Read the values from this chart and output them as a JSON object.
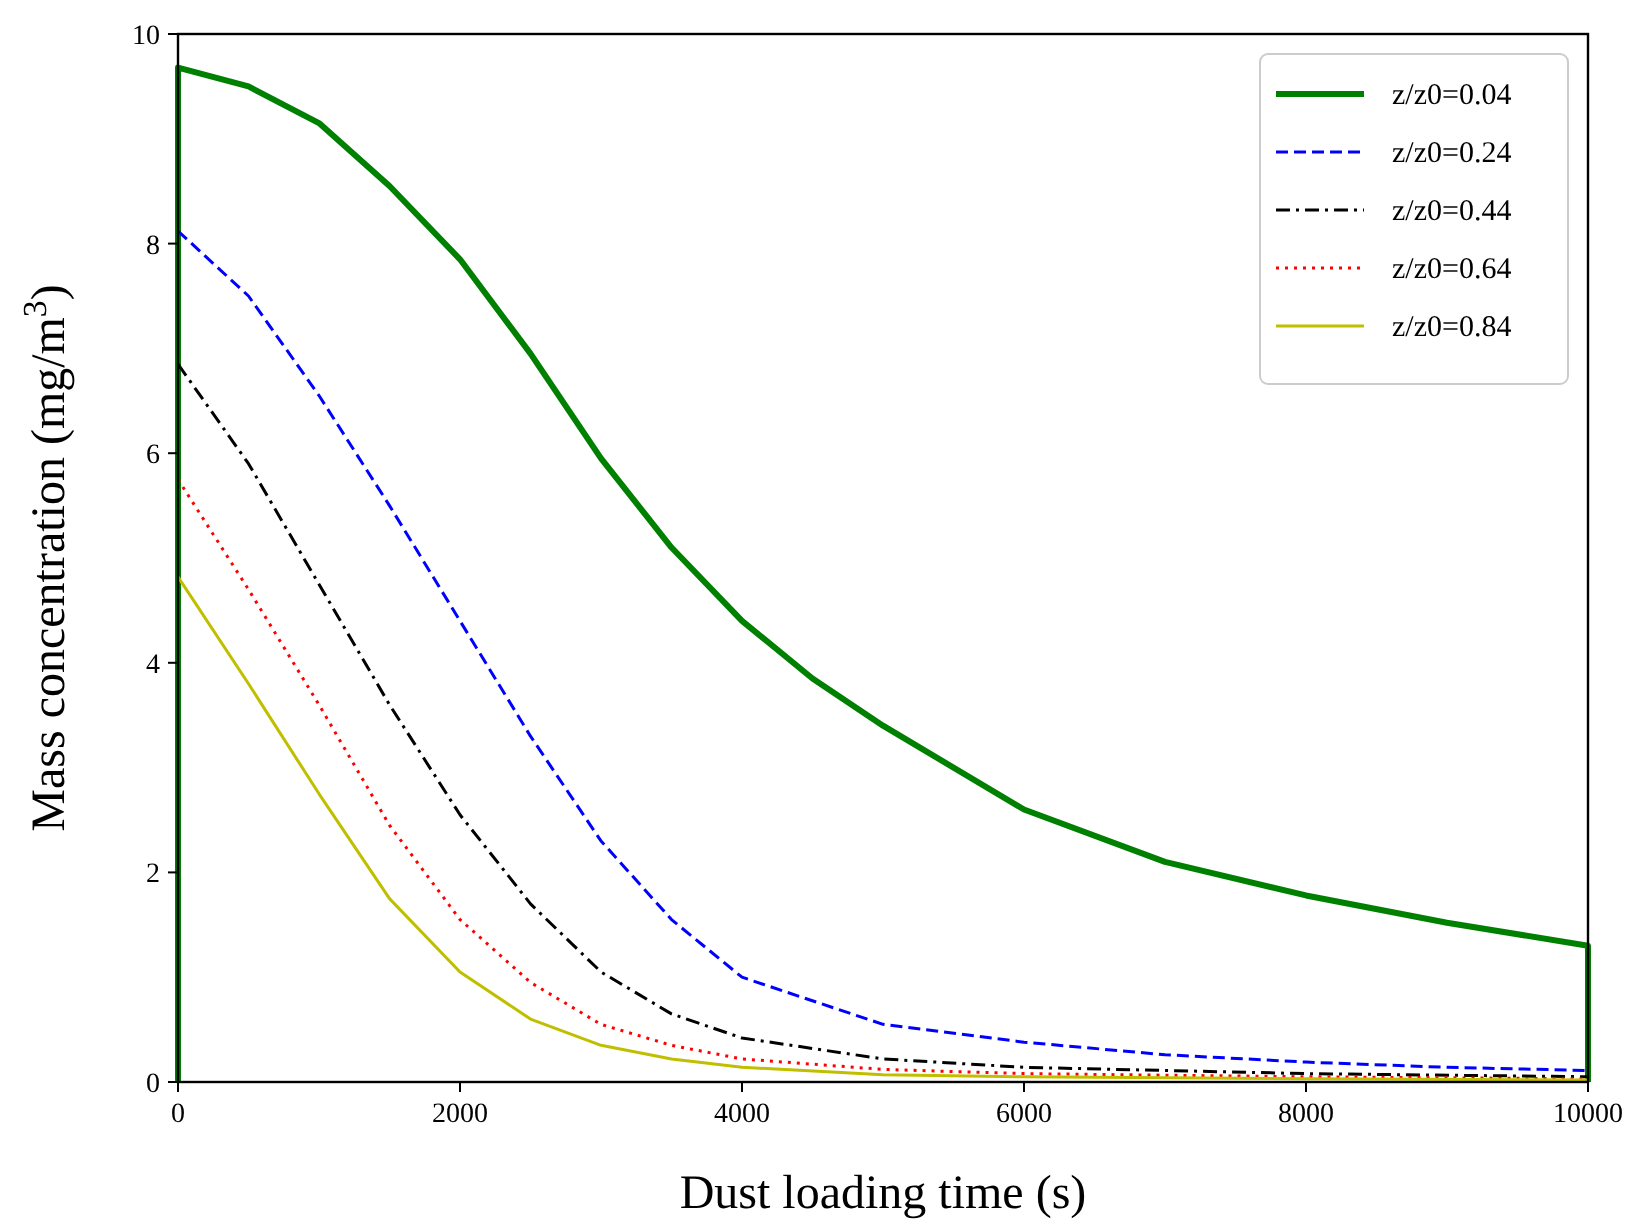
{
  "chart_data": {
    "type": "line",
    "xlabel": "Dust loading time (s)",
    "ylabel": "Mass concentration (mg/m$^{3}$)",
    "xlim": [
      0,
      10000
    ],
    "ylim": [
      0,
      10
    ],
    "xticks": [
      0,
      2000,
      4000,
      6000,
      8000,
      10000
    ],
    "yticks": [
      0,
      2,
      4,
      6,
      8,
      10
    ],
    "grid": false,
    "legend": "top right",
    "series": [
      {
        "name": "z/z0=0.04",
        "color": "#008000",
        "line_style": "solid",
        "x": [
          0,
          0,
          500,
          1000,
          1500,
          2000,
          2500,
          3000,
          3500,
          4000,
          4500,
          5000,
          6000,
          7000,
          8000,
          9000,
          10000,
          10000
        ],
        "values": [
          0,
          9.68,
          9.5,
          9.15,
          8.55,
          7.85,
          6.95,
          5.95,
          5.1,
          4.4,
          3.85,
          3.4,
          2.6,
          2.1,
          1.78,
          1.52,
          1.3,
          0
        ]
      },
      {
        "name": "z/z0=0.24",
        "color": "#0000ff",
        "line_style": "dashed",
        "x": [
          0,
          500,
          1000,
          1500,
          2000,
          2500,
          3000,
          3500,
          4000,
          5000,
          6000,
          7000,
          8000,
          9000,
          10000
        ],
        "values": [
          8.12,
          7.5,
          6.55,
          5.5,
          4.4,
          3.3,
          2.3,
          1.55,
          1.0,
          0.55,
          0.38,
          0.26,
          0.19,
          0.14,
          0.11
        ]
      },
      {
        "name": "z/z0=0.44",
        "color": "#000000",
        "line_style": "dashdot",
        "x": [
          0,
          500,
          1000,
          1500,
          2000,
          2500,
          3000,
          3500,
          4000,
          5000,
          6000,
          8000,
          10000
        ],
        "values": [
          6.85,
          5.9,
          4.75,
          3.6,
          2.55,
          1.7,
          1.05,
          0.65,
          0.42,
          0.22,
          0.14,
          0.08,
          0.05
        ]
      },
      {
        "name": "z/z0=0.64",
        "color": "#ff0000",
        "line_style": "dotted",
        "x": [
          0,
          500,
          1000,
          1500,
          2000,
          2500,
          3000,
          3500,
          4000,
          5000,
          6000,
          8000,
          10000
        ],
        "values": [
          5.75,
          4.7,
          3.6,
          2.45,
          1.55,
          0.95,
          0.55,
          0.35,
          0.22,
          0.12,
          0.08,
          0.05,
          0.03
        ]
      },
      {
        "name": "z/z0=0.84",
        "color": "#bfbf00",
        "line_style": "solid",
        "x": [
          0,
          500,
          1000,
          1500,
          2000,
          2500,
          3000,
          3500,
          4000,
          5000,
          6000,
          8000,
          10000
        ],
        "values": [
          4.82,
          3.8,
          2.75,
          1.75,
          1.05,
          0.6,
          0.35,
          0.22,
          0.14,
          0.07,
          0.05,
          0.03,
          0.02
        ]
      }
    ]
  }
}
